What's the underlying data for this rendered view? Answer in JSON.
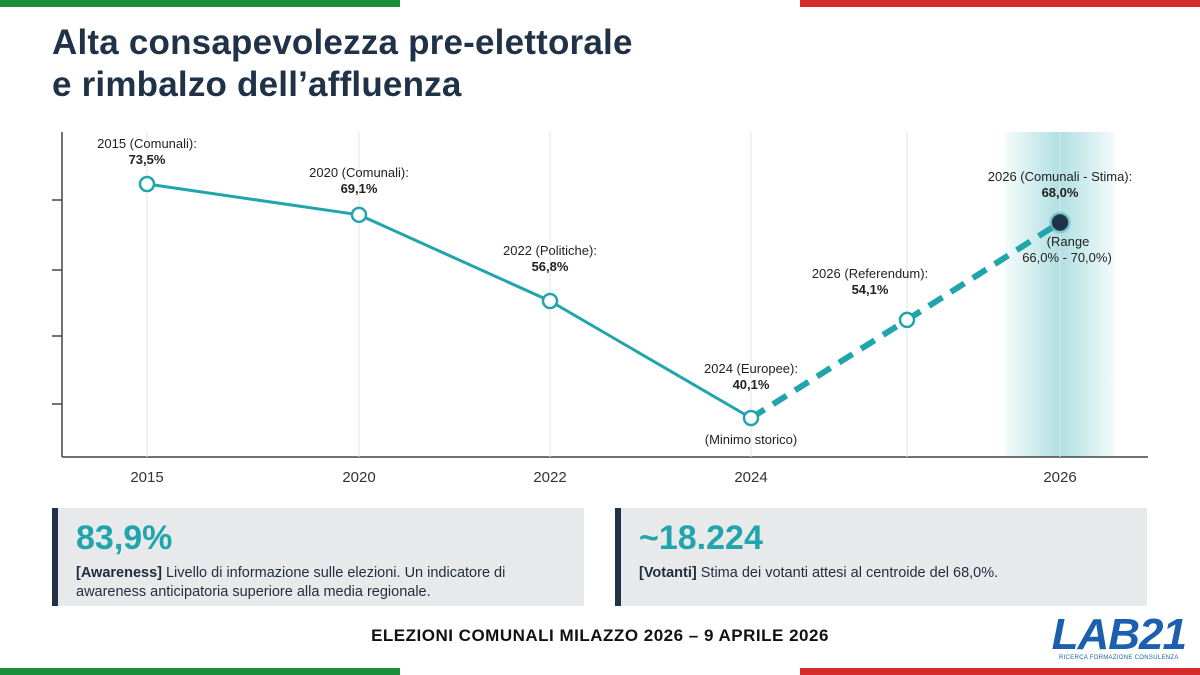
{
  "colors": {
    "teal": "#1fa5ab",
    "navy": "#1f3247",
    "flag_green": "#1a8f3a",
    "flag_white": "#ffffff",
    "flag_red": "#d52b2b",
    "logo_blue": "#1c5fae"
  },
  "title": {
    "line1": "Alta consapevolezza pre-elettorale",
    "line2": "e rimbalzo dell’affluenza"
  },
  "chart_data": {
    "type": "line",
    "x_ticks": [
      "2015",
      "2020",
      "2022",
      "2024",
      "2026"
    ],
    "ylim": [
      38,
      78
    ],
    "points": [
      {
        "id": "2015",
        "label": "2015 (Comunali):",
        "value_label": "73,5%",
        "value": 73.5,
        "x_pos": 0,
        "style": "solid",
        "marker": "hollow"
      },
      {
        "id": "2020",
        "label": "2020 (Comunali):",
        "value_label": "69,1%",
        "value": 69.1,
        "x_pos": 1,
        "style": "solid",
        "marker": "hollow"
      },
      {
        "id": "2022",
        "label": "2022 (Politiche):",
        "value_label": "56,8%",
        "value": 56.8,
        "x_pos": 2,
        "style": "solid",
        "marker": "hollow"
      },
      {
        "id": "2024",
        "label": "2024 (Europee):",
        "value_label": "40,1%",
        "value": 40.1,
        "x_pos": 3,
        "note": "(Minimo storico)",
        "style": "solid",
        "marker": "hollow"
      },
      {
        "id": "2026-ref",
        "label": "2026 (Referendum):",
        "value_label": "54,1%",
        "value": 54.1,
        "x_pos": 3.8,
        "style": "dashed",
        "marker": "hollow"
      },
      {
        "id": "2026-com",
        "label": "2026 (Comunali - Stima):",
        "value_label": "68,0%",
        "value": 68.0,
        "x_pos": 4.5,
        "note_line1": "(Range",
        "note_line2": "66,0% - 70,0%)",
        "style": "dashed",
        "marker": "filled"
      }
    ]
  },
  "cards": [
    {
      "value": "83,9%",
      "tag": "[Awareness]",
      "text": " Livello di informazione sulle elezioni. Un indicatore di awareness anticipatoria superiore alla media regionale."
    },
    {
      "value": "~18.224",
      "tag": "[Votanti]",
      "text": " Stima dei votanti attesi al centroide del 68,0%."
    }
  ],
  "footer": "ELEZIONI COMUNALI MILAZZO 2026 – 9 APRILE 2026",
  "logo": {
    "text": "LAB21",
    "sub": "RICERCA FORMAZIONE CONSULENZA"
  }
}
